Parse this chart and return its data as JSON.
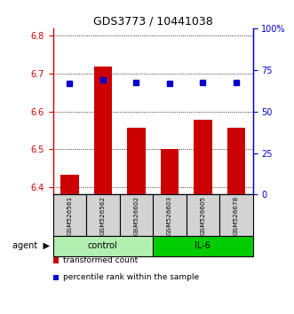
{
  "title": "GDS3773 / 10441038",
  "samples": [
    "GSM526561",
    "GSM526562",
    "GSM526602",
    "GSM526603",
    "GSM526605",
    "GSM526678"
  ],
  "bar_values": [
    6.432,
    6.718,
    6.557,
    6.5,
    6.578,
    6.557
  ],
  "dot_values_pct": [
    67.0,
    69.0,
    67.5,
    67.0,
    67.5,
    67.5
  ],
  "bar_color": "#cc0000",
  "dot_color": "#0000cc",
  "ylim_left": [
    6.38,
    6.82
  ],
  "ylim_right": [
    0,
    100
  ],
  "yticks_left": [
    6.4,
    6.5,
    6.6,
    6.7,
    6.8
  ],
  "yticks_right": [
    0,
    25,
    50,
    75,
    100
  ],
  "ytick_labels_right": [
    "0",
    "25",
    "50",
    "75",
    "100%"
  ],
  "groups": [
    {
      "label": "control",
      "indices": [
        0,
        1,
        2
      ],
      "color": "#b2f0b2"
    },
    {
      "label": "IL-6",
      "indices": [
        3,
        4,
        5
      ],
      "color": "#00cc00"
    }
  ],
  "agent_label": "agent",
  "legend_items": [
    {
      "label": "transformed count",
      "color": "#cc0000"
    },
    {
      "label": "percentile rank within the sample",
      "color": "#0000cc"
    }
  ],
  "bar_bottom": 6.38,
  "bar_width": 0.55,
  "grid_color": "#000000",
  "sample_box_color": "#d3d3d3"
}
